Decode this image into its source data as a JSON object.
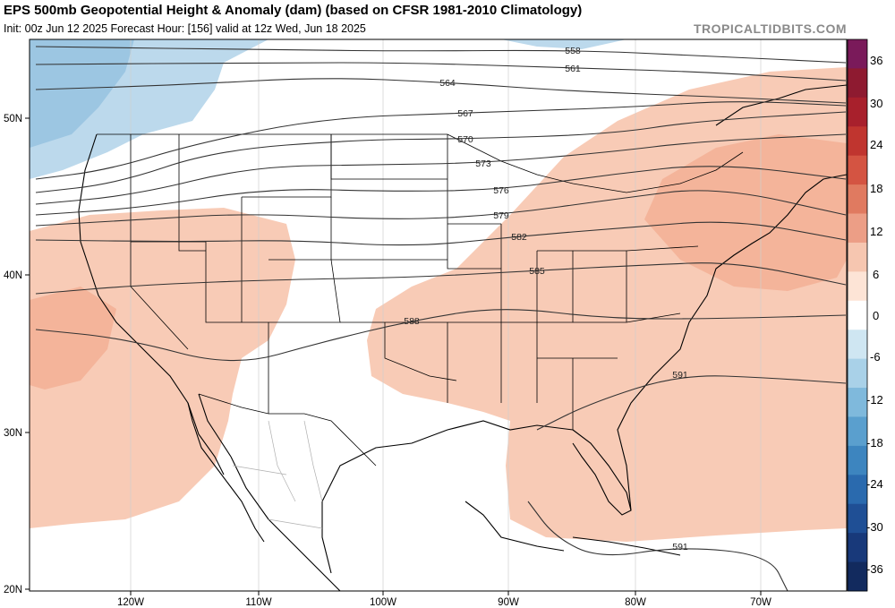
{
  "header": {
    "title": "EPS 500mb Geopotential Height & Anomaly (dam) (based on CFSR 1981-2010 Climatology)",
    "subtitle": "Init: 00z Jun 12 2025   Forecast Hour: [156]   valid at 12z Wed, Jun 18 2025",
    "brand": "TROPICALTIDBITS.COM"
  },
  "axes": {
    "lat_labels": [
      "50N",
      "40N",
      "30N",
      "20N"
    ],
    "lon_labels": [
      "120W",
      "110W",
      "100W",
      "90W",
      "80W",
      "70W"
    ]
  },
  "colorbar": {
    "labels": [
      "36",
      "30",
      "24",
      "18",
      "12",
      "6",
      "0",
      "-6",
      "-12",
      "-18",
      "-24",
      "-30",
      "-36"
    ],
    "colors": [
      "#7a1a5a",
      "#8e1a30",
      "#a8202c",
      "#c0352f",
      "#d45442",
      "#e07a60",
      "#ec9e86",
      "#f6c6b0",
      "#fde4d6",
      "#ffffff",
      "#cfe6f2",
      "#a9d1e8",
      "#7fb9dc",
      "#5a9fce",
      "#3d85bf",
      "#2a6aae",
      "#1f4f95",
      "#18397a",
      "#122a5e"
    ]
  },
  "contour_labels": [
    "558",
    "561",
    "564",
    "567",
    "570",
    "573",
    "576",
    "579",
    "582",
    "585",
    "588",
    "591"
  ],
  "contours": [
    {
      "label": "558",
      "points": [
        [
          40,
          52
        ],
        [
          330,
          56
        ],
        [
          460,
          57
        ],
        [
          640,
          56
        ],
        [
          780,
          62
        ],
        [
          945,
          70
        ]
      ]
    },
    {
      "label": "561",
      "points": [
        [
          40,
          72
        ],
        [
          300,
          70
        ],
        [
          460,
          70
        ],
        [
          640,
          76
        ],
        [
          780,
          80
        ],
        [
          945,
          90
        ]
      ]
    },
    {
      "label": "564",
      "points": [
        [
          40,
          100
        ],
        [
          200,
          95
        ],
        [
          360,
          86
        ],
        [
          500,
          92
        ],
        [
          640,
          102
        ],
        [
          800,
          108
        ],
        [
          945,
          115
        ]
      ]
    },
    {
      "label": "567",
      "points": [
        [
          40,
          200
        ],
        [
          120,
          190
        ],
        [
          220,
          160
        ],
        [
          360,
          132
        ],
        [
          520,
          126
        ],
        [
          700,
          120
        ],
        [
          820,
          112
        ],
        [
          945,
          118
        ]
      ]
    },
    {
      "label": "570",
      "points": [
        [
          40,
          215
        ],
        [
          130,
          205
        ],
        [
          240,
          168
        ],
        [
          400,
          156
        ],
        [
          520,
          155
        ],
        [
          680,
          150
        ],
        [
          780,
          135
        ],
        [
          945,
          125
        ]
      ]
    },
    {
      "label": "573",
      "points": [
        [
          40,
          228
        ],
        [
          150,
          218
        ],
        [
          280,
          186
        ],
        [
          420,
          184
        ],
        [
          540,
          182
        ],
        [
          680,
          170
        ],
        [
          780,
          158
        ],
        [
          945,
          150
        ]
      ]
    },
    {
      "label": "576",
      "points": [
        [
          40,
          240
        ],
        [
          160,
          232
        ],
        [
          300,
          210
        ],
        [
          440,
          214
        ],
        [
          560,
          212
        ],
        [
          680,
          195
        ],
        [
          800,
          182
        ],
        [
          945,
          200
        ]
      ]
    },
    {
      "label": "579",
      "points": [
        [
          40,
          252
        ],
        [
          160,
          245
        ],
        [
          280,
          238
        ],
        [
          440,
          246
        ],
        [
          560,
          240
        ],
        [
          690,
          222
        ],
        [
          800,
          208
        ],
        [
          945,
          240
        ]
      ]
    },
    {
      "label": "582",
      "points": [
        [
          40,
          268
        ],
        [
          200,
          270
        ],
        [
          330,
          268
        ],
        [
          460,
          276
        ],
        [
          580,
          264
        ],
        [
          700,
          254
        ],
        [
          820,
          245
        ],
        [
          945,
          268
        ]
      ]
    },
    {
      "label": "585",
      "points": [
        [
          40,
          328
        ],
        [
          160,
          318
        ],
        [
          320,
          312
        ],
        [
          460,
          310
        ],
        [
          600,
          302
        ],
        [
          720,
          296
        ],
        [
          820,
          292
        ],
        [
          945,
          318
        ]
      ]
    },
    {
      "label": "588",
      "points": [
        [
          40,
          368
        ],
        [
          140,
          378
        ],
        [
          260,
          410
        ],
        [
          360,
          382
        ],
        [
          460,
          358
        ],
        [
          560,
          342
        ],
        [
          680,
          356
        ],
        [
          800,
          356
        ],
        [
          945,
          352
        ]
      ]
    },
    {
      "label": "591",
      "points": [
        [
          600,
          480
        ],
        [
          660,
          450
        ],
        [
          760,
          418
        ],
        [
          860,
          422
        ],
        [
          945,
          428
        ]
      ]
    },
    {
      "label": "591",
      "points": [
        [
          590,
          560
        ],
        [
          620,
          600
        ],
        [
          670,
          624
        ],
        [
          760,
          610
        ],
        [
          860,
          620
        ],
        [
          880,
          660
        ]
      ]
    }
  ]
}
